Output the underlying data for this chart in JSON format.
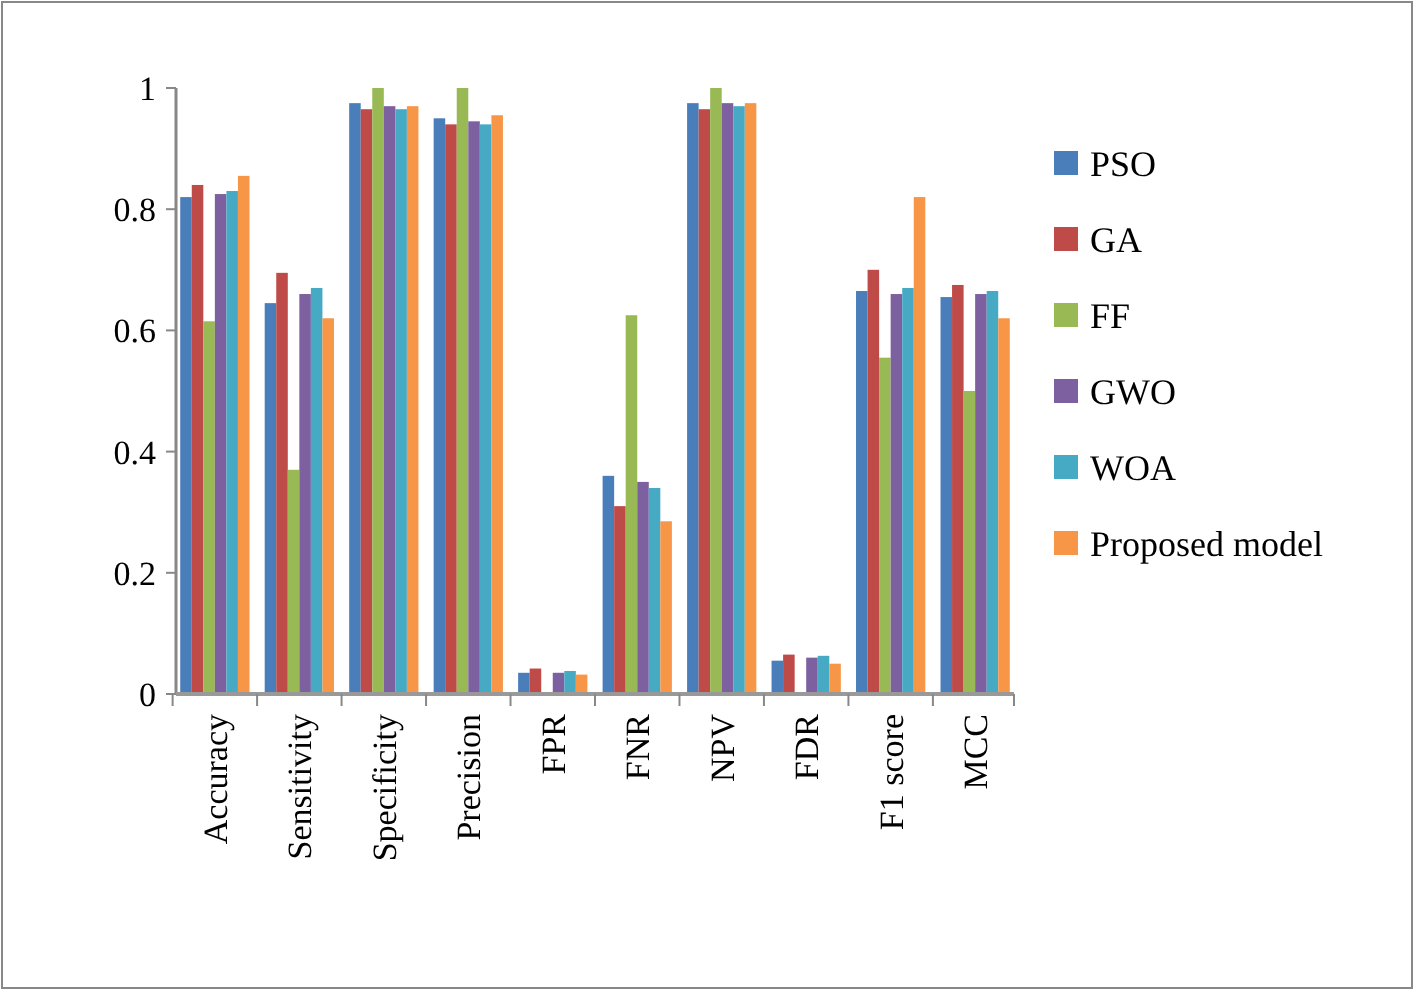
{
  "chart_data": {
    "type": "bar",
    "categories": [
      "Accuracy",
      "Sensitivity",
      "Specificity",
      "Precision",
      "FPR",
      "FNR",
      "NPV",
      "FDR",
      "F1 score",
      "MCC"
    ],
    "series": [
      {
        "name": "PSO",
        "color": "#4a7ebb",
        "values": [
          0.82,
          0.645,
          0.975,
          0.95,
          0.035,
          0.36,
          0.975,
          0.055,
          0.665,
          0.655
        ]
      },
      {
        "name": "GA",
        "color": "#be4b48",
        "values": [
          0.84,
          0.695,
          0.965,
          0.94,
          0.042,
          0.31,
          0.965,
          0.065,
          0.7,
          0.675
        ]
      },
      {
        "name": "FF",
        "color": "#98b954",
        "values": [
          0.615,
          0.37,
          1.0,
          1.0,
          0,
          0.625,
          1.0,
          0,
          0.555,
          0.5
        ]
      },
      {
        "name": "GWO",
        "color": "#7d60a0",
        "values": [
          0.825,
          0.66,
          0.97,
          0.945,
          0.035,
          0.35,
          0.975,
          0.06,
          0.66,
          0.66
        ]
      },
      {
        "name": "WOA",
        "color": "#46aac5",
        "values": [
          0.83,
          0.67,
          0.965,
          0.94,
          0.038,
          0.34,
          0.97,
          0.063,
          0.67,
          0.665
        ]
      },
      {
        "name": "Proposed model",
        "color": "#f79646",
        "values": [
          0.855,
          0.62,
          0.97,
          0.955,
          0.032,
          0.285,
          0.975,
          0.05,
          0.82,
          0.62
        ]
      }
    ],
    "ylim": [
      0,
      1
    ],
    "yticks": [
      0,
      0.2,
      0.4,
      0.6,
      0.8,
      1
    ],
    "grid": false,
    "legend": "right"
  }
}
